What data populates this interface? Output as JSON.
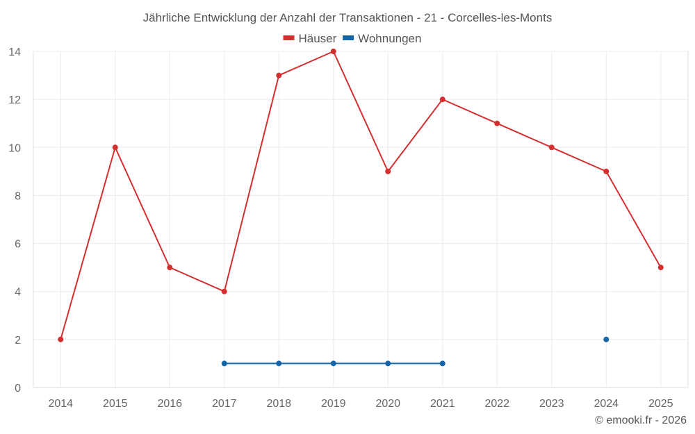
{
  "chart_data": {
    "type": "line",
    "title": "Jährliche Entwicklung der Anzahl der Transaktionen - 21 - Corcelles-les-Monts",
    "categories": [
      "2014",
      "2015",
      "2016",
      "2017",
      "2018",
      "2019",
      "2020",
      "2021",
      "2022",
      "2023",
      "2024",
      "2025"
    ],
    "series": [
      {
        "name": "Häuser",
        "color": "#d32f2f",
        "values": [
          2,
          10,
          5,
          4,
          13,
          14,
          9,
          12,
          11,
          10,
          9,
          5
        ]
      },
      {
        "name": "Wohnungen",
        "color": "#1565a8",
        "values": [
          null,
          null,
          null,
          1,
          1,
          1,
          1,
          1,
          null,
          null,
          2,
          null
        ]
      }
    ],
    "ylim": [
      0,
      14
    ],
    "yticks": [
      0,
      2,
      4,
      6,
      8,
      10,
      12,
      14
    ],
    "xlabel": "",
    "ylabel": "",
    "grid": true,
    "legend_position": "top-center"
  },
  "credit": "© emooki.fr - 2026"
}
